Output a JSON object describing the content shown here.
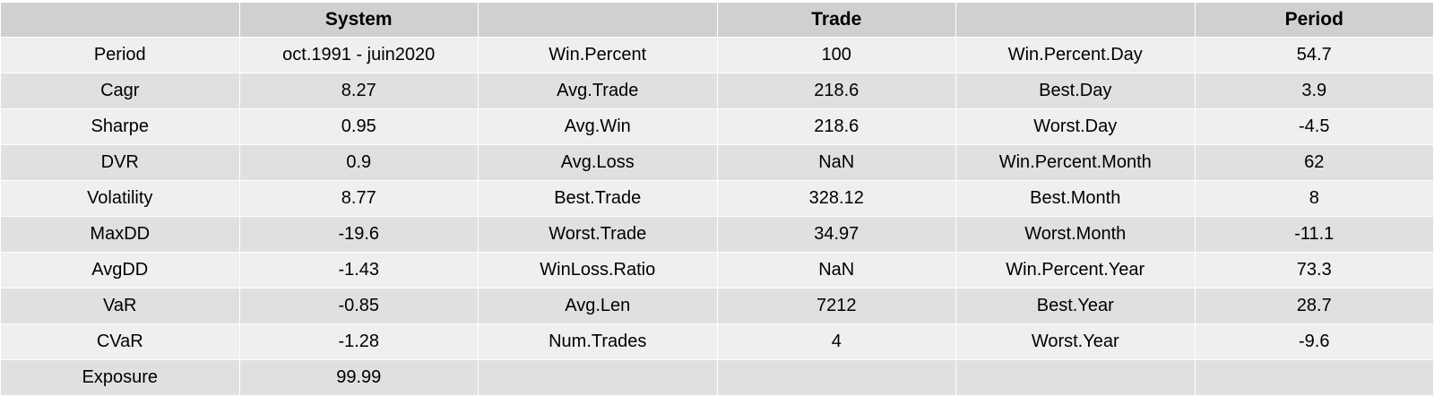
{
  "chart_data": {
    "type": "table",
    "columns": [
      "",
      "System",
      "",
      "Trade",
      "",
      "Period"
    ],
    "rows": [
      [
        "Period",
        "oct.1991 - juin2020",
        "Win.Percent",
        "100",
        "Win.Percent.Day",
        "54.7"
      ],
      [
        "Cagr",
        "8.27",
        "Avg.Trade",
        "218.6",
        "Best.Day",
        "3.9"
      ],
      [
        "Sharpe",
        "0.95",
        "Avg.Win",
        "218.6",
        "Worst.Day",
        "-4.5"
      ],
      [
        "DVR",
        "0.9",
        "Avg.Loss",
        "NaN",
        "Win.Percent.Month",
        "62"
      ],
      [
        "Volatility",
        "8.77",
        "Best.Trade",
        "328.12",
        "Best.Month",
        "8"
      ],
      [
        "MaxDD",
        "-19.6",
        "Worst.Trade",
        "34.97",
        "Worst.Month",
        "-11.1"
      ],
      [
        "AvgDD",
        "-1.43",
        "WinLoss.Ratio",
        "NaN",
        "Win.Percent.Year",
        "73.3"
      ],
      [
        "VaR",
        "-0.85",
        "Avg.Len",
        "7212",
        "Best.Year",
        "28.7"
      ],
      [
        "CVaR",
        "-1.28",
        "Num.Trades",
        "4",
        "Worst.Year",
        "-9.6"
      ],
      [
        "Exposure",
        "99.99",
        "",
        "",
        "",
        ""
      ]
    ],
    "colors": {
      "header_bg": "#d0d0d0",
      "row_light": "#efefef",
      "row_dark": "#e0e0e0",
      "border": "#ffffff"
    }
  }
}
